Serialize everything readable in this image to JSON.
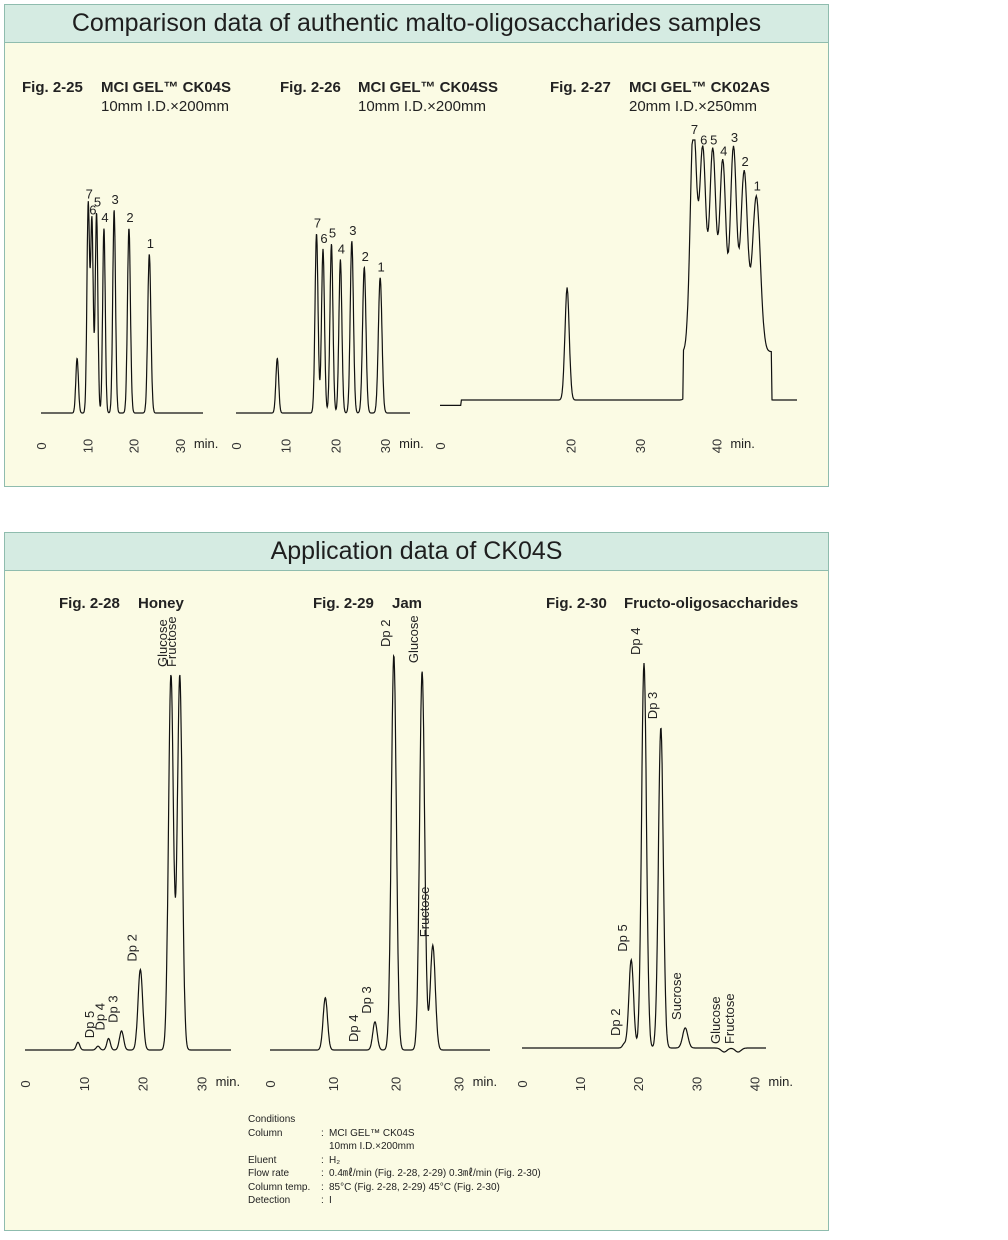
{
  "sections": [
    {
      "title": "Comparison data of authentic malto-oligosaccharides samples"
    },
    {
      "title": "Application data of CK04S"
    }
  ],
  "min_label": "min.",
  "colors": {
    "panel_bg": "#fbfbe4",
    "header_bg": "#d5ebe2",
    "border": "#8fbcae",
    "trace": "#111111"
  },
  "conditions": {
    "heading": "Conditions",
    "rows": [
      {
        "key": "Column",
        "value": "MCI GEL™  CK04S"
      },
      {
        "key": "",
        "value": "10mm I.D.×200mm"
      },
      {
        "key": "Eluent",
        "value": "H₂"
      },
      {
        "key": "Flow rate",
        "value": "0.4㎖/min (Fig. 2-28, 2-29)  0.3㎖/min (Fig. 2-30)"
      },
      {
        "key": "Column temp.",
        "value": "85°C (Fig. 2-28, 2-29)  45°C (Fig. 2-30)"
      },
      {
        "key": "Detection",
        "value": "I"
      }
    ]
  },
  "chart_data": [
    {
      "type": "line",
      "fig": "Fig. 2-25",
      "title": "MCI GEL™ CK04S",
      "subtitle": "10mm  I.D.×200mm",
      "xlabel": "min.",
      "xticks": [
        "0",
        "10",
        "20",
        "30"
      ],
      "xlim": [
        0,
        35
      ],
      "ylim": [
        0,
        100
      ],
      "baseline": 4,
      "peaks": [
        {
          "t": 7.8,
          "h": 25,
          "w": 0.28,
          "label": ""
        },
        {
          "t": 10.2,
          "h": 84,
          "w": 0.28,
          "label": "7"
        },
        {
          "t": 11.0,
          "h": 78,
          "w": 0.28,
          "label": "6"
        },
        {
          "t": 12.0,
          "h": 81,
          "w": 0.28,
          "label": "5"
        },
        {
          "t": 13.6,
          "h": 75,
          "w": 0.28,
          "label": "4"
        },
        {
          "t": 15.8,
          "h": 82,
          "w": 0.3,
          "label": "3"
        },
        {
          "t": 19.0,
          "h": 75,
          "w": 0.32,
          "label": "2"
        },
        {
          "t": 23.4,
          "h": 65,
          "w": 0.34,
          "label": "1"
        }
      ]
    },
    {
      "type": "line",
      "fig": "Fig. 2-26",
      "title": "MCI GEL™ CK04SS",
      "subtitle": "10mm  I.D.×200mm",
      "xlabel": "min.",
      "xticks": [
        "0",
        "10",
        "20",
        "30"
      ],
      "xlim": [
        0,
        35
      ],
      "ylim": [
        0,
        100
      ],
      "baseline": 4,
      "peaks": [
        {
          "t": 8.3,
          "h": 25,
          "w": 0.28,
          "label": ""
        },
        {
          "t": 16.2,
          "h": 73,
          "w": 0.3,
          "label": "7"
        },
        {
          "t": 17.5,
          "h": 67,
          "w": 0.3,
          "label": "6"
        },
        {
          "t": 19.2,
          "h": 69,
          "w": 0.3,
          "label": "5"
        },
        {
          "t": 21.0,
          "h": 63,
          "w": 0.3,
          "label": "4"
        },
        {
          "t": 23.3,
          "h": 70,
          "w": 0.32,
          "label": "3"
        },
        {
          "t": 25.8,
          "h": 60,
          "w": 0.34,
          "label": "2"
        },
        {
          "t": 29.0,
          "h": 56,
          "w": 0.36,
          "label": "1"
        }
      ]
    },
    {
      "type": "line",
      "fig": "Fig. 2-27",
      "title": "MCI GEL™ CK02AS",
      "subtitle": "20mm  I.D.×250mm",
      "xlabel": "min.",
      "xticks": [
        "0",
        "20",
        "30",
        "40"
      ],
      "xlim": [
        0,
        50
      ],
      "ylim": [
        0,
        100
      ],
      "baseline": 3,
      "peaks": [
        {
          "t": 17.8,
          "h": 45,
          "w": 0.3,
          "label": ""
        },
        {
          "t": 35.5,
          "h": 88,
          "w": 0.45,
          "label": "7"
        },
        {
          "t": 36.8,
          "h": 78,
          "w": 0.45,
          "label": "6"
        },
        {
          "t": 38.2,
          "h": 78,
          "w": 0.45,
          "label": "5"
        },
        {
          "t": 39.6,
          "h": 74,
          "w": 0.45,
          "label": "4"
        },
        {
          "t": 41.1,
          "h": 79,
          "w": 0.45,
          "label": "3"
        },
        {
          "t": 42.6,
          "h": 70,
          "w": 0.48,
          "label": "2"
        },
        {
          "t": 44.3,
          "h": 61,
          "w": 0.55,
          "label": "1"
        }
      ]
    },
    {
      "type": "line",
      "fig": "Fig. 2-28",
      "title": "Honey",
      "subtitle": "",
      "xlabel": "min.",
      "xticks": [
        "0",
        "10",
        "20",
        "30"
      ],
      "xlim": [
        0,
        35
      ],
      "ylim": [
        0,
        100
      ],
      "baseline": 2,
      "peaks": [
        {
          "t": 9.0,
          "h": 4,
          "w": 0.3,
          "label": ""
        },
        {
          "t": 12.4,
          "h": 3,
          "w": 0.3,
          "label": "Dp 5"
        },
        {
          "t": 14.2,
          "h": 5,
          "w": 0.3,
          "label": "Dp 4"
        },
        {
          "t": 16.4,
          "h": 7,
          "w": 0.35,
          "label": "Dp 3"
        },
        {
          "t": 19.6,
          "h": 23,
          "w": 0.4,
          "label": "Dp 2"
        },
        {
          "t": 24.8,
          "h": 100,
          "w": 0.42,
          "label": "Glucose"
        },
        {
          "t": 26.3,
          "h": 100,
          "w": 0.42,
          "label": "Fructose"
        }
      ]
    },
    {
      "type": "line",
      "fig": "Fig. 2-29",
      "title": "Jam",
      "subtitle": "",
      "xlabel": "min.",
      "xticks": [
        "0",
        "10",
        "20",
        "30"
      ],
      "xlim": [
        0,
        35
      ],
      "ylim": [
        0,
        100
      ],
      "baseline": 2,
      "peaks": [
        {
          "t": 8.8,
          "h": 15,
          "w": 0.35,
          "label": ""
        },
        {
          "t": 14.6,
          "h": 2,
          "w": 0.3,
          "label": "Dp 4"
        },
        {
          "t": 16.7,
          "h": 9,
          "w": 0.35,
          "label": "Dp 3"
        },
        {
          "t": 19.7,
          "h": 100,
          "w": 0.4,
          "label": "Dp 2"
        },
        {
          "t": 24.2,
          "h": 96,
          "w": 0.4,
          "label": "Glucose"
        },
        {
          "t": 25.9,
          "h": 28,
          "w": 0.4,
          "label": "Fructose"
        }
      ]
    },
    {
      "type": "line",
      "fig": "Fig. 2-30",
      "title": "Fructo-oligosaccharides",
      "subtitle": "",
      "xlabel": "min.",
      "xticks": [
        "0",
        "10",
        "20",
        "30",
        "40"
      ],
      "xlim": [
        0,
        42
      ],
      "ylim": [
        0,
        100
      ],
      "baseline": 2,
      "peaks": [
        {
          "t": 17.6,
          "h": 3,
          "w": 0.3,
          "label": "Dp 2"
        },
        {
          "t": 18.8,
          "h": 24,
          "w": 0.4,
          "label": "Dp 5"
        },
        {
          "t": 21.0,
          "h": 98,
          "w": 0.42,
          "label": "Dp 4"
        },
        {
          "t": 23.9,
          "h": 82,
          "w": 0.42,
          "label": "Dp 3"
        },
        {
          "t": 28.1,
          "h": 7,
          "w": 0.45,
          "label": "Sucrose"
        },
        {
          "t": 34.8,
          "h": 1,
          "w": 0.5,
          "label": "Glucose"
        },
        {
          "t": 37.2,
          "h": 1,
          "w": 0.5,
          "label": "Fructose"
        }
      ]
    }
  ]
}
